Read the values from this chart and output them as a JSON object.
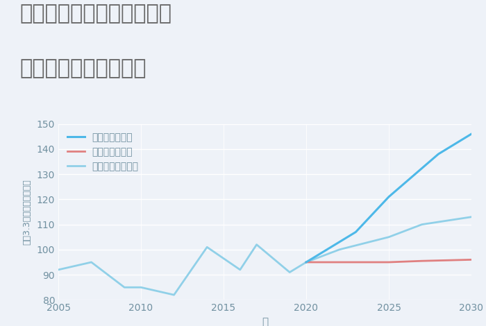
{
  "title_line1": "愛知県尾張旭市瀬戸川町の",
  "title_line2": "中古戸建ての価格推移",
  "xlabel": "年",
  "ylabel": "坪（3.3㎡）単価（万円）",
  "ylim": [
    80,
    150
  ],
  "xlim": [
    2005,
    2030
  ],
  "yticks": [
    80,
    90,
    100,
    110,
    120,
    130,
    140,
    150
  ],
  "xticks": [
    2005,
    2010,
    2015,
    2020,
    2025,
    2030
  ],
  "background_color": "#eef2f8",
  "plot_bg_color": "#eef2f8",
  "grid_color": "#ffffff",
  "normal_scenario": {
    "label": "ノーマルシナリオ",
    "color": "#90D0E8",
    "linewidth": 2.0,
    "x": [
      2005,
      2007,
      2009,
      2010,
      2012,
      2014,
      2016,
      2017,
      2019,
      2020,
      2022,
      2025,
      2027,
      2030
    ],
    "y": [
      92,
      95,
      85,
      85,
      82,
      101,
      92,
      102,
      91,
      95,
      100,
      105,
      110,
      113
    ]
  },
  "good_scenario": {
    "label": "グッドシナリオ",
    "color": "#4db8e8",
    "linewidth": 2.2,
    "x": [
      2020,
      2023,
      2025,
      2028,
      2030
    ],
    "y": [
      95,
      107,
      121,
      138,
      146
    ]
  },
  "bad_scenario": {
    "label": "バッドシナリオ",
    "color": "#E08080",
    "linewidth": 2.0,
    "x": [
      2020,
      2022,
      2025,
      2027,
      2030
    ],
    "y": [
      95,
      95,
      95,
      95.5,
      96
    ]
  },
  "legend_fontsize": 10,
  "title_fontsize": 22,
  "title_color": "#666666",
  "axis_label_color": "#7090a0",
  "tick_label_color": "#7090a0"
}
